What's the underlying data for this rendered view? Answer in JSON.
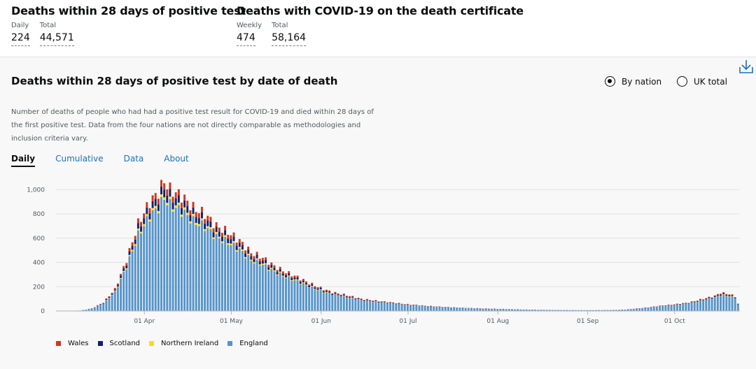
{
  "metrics": {
    "deaths28": {
      "title": "Deaths within 28 days of positive test",
      "daily_label": "Daily",
      "daily_value": "224",
      "total_label": "Total",
      "total_value": "44,571"
    },
    "certificate": {
      "title": "Deaths with COVID-19 on the death certificate",
      "weekly_label": "Weekly",
      "weekly_value": "474",
      "total_label": "Total",
      "total_value": "58,164"
    }
  },
  "panel": {
    "title": "Deaths within 28 days of positive test by date of death",
    "description": "Number of deaths of people who had had a positive test result for COVID-19 and died within 28 days of the first positive test. Data from the four nations are not directly comparable as methodologies and inclusion criteria vary.",
    "radio_options": [
      {
        "label": "By nation",
        "selected": true
      },
      {
        "label": "UK total",
        "selected": false
      }
    ],
    "tabs": [
      {
        "label": "Daily",
        "active": true
      },
      {
        "label": "Cumulative",
        "active": false
      },
      {
        "label": "Data",
        "active": false
      },
      {
        "label": "About",
        "active": false
      }
    ],
    "download_icon": "download-icon"
  },
  "chart_data": {
    "type": "bar",
    "stacked": true,
    "x_type": "date",
    "x_start": "2020-03-02",
    "x_end": "2020-10-23",
    "x_ticks": [
      {
        "date": "2020-04-01",
        "label": "01 Apr"
      },
      {
        "date": "2020-05-01",
        "label": "01 May"
      },
      {
        "date": "2020-06-01",
        "label": "01 Jun"
      },
      {
        "date": "2020-07-01",
        "label": "01 Jul"
      },
      {
        "date": "2020-08-01",
        "label": "01 Aug"
      },
      {
        "date": "2020-09-01",
        "label": "01 Sep"
      },
      {
        "date": "2020-10-01",
        "label": "01 Oct"
      }
    ],
    "y_ticks": [
      {
        "value": 0,
        "label": "0"
      },
      {
        "value": 200,
        "label": "200"
      },
      {
        "value": 400,
        "label": "400"
      },
      {
        "value": 600,
        "label": "600"
      },
      {
        "value": 800,
        "label": "800"
      },
      {
        "value": 1000,
        "label": "1,000"
      }
    ],
    "ylim": [
      0,
      1100
    ],
    "grid": true,
    "legend_position": "bottom-left",
    "series": [
      {
        "name": "Wales",
        "color": "#d4351c",
        "fraction": 0.05
      },
      {
        "name": "Scotland",
        "color": "#12216e",
        "fraction": 0.06
      },
      {
        "name": "Northern Ireland",
        "color": "#ffdd00",
        "fraction": 0.02
      },
      {
        "name": "England",
        "color": "#5694ca",
        "fraction": 0.87
      }
    ],
    "total_keypoints": [
      [
        "2020-03-02",
        0
      ],
      [
        "2020-03-06",
        2
      ],
      [
        "2020-03-10",
        5
      ],
      [
        "2020-03-14",
        22
      ],
      [
        "2020-03-18",
        70
      ],
      [
        "2020-03-22",
        180
      ],
      [
        "2020-03-26",
        420
      ],
      [
        "2020-03-30",
        720
      ],
      [
        "2020-04-03",
        900
      ],
      [
        "2020-04-06",
        980
      ],
      [
        "2020-04-08",
        1070
      ],
      [
        "2020-04-10",
        1000
      ],
      [
        "2020-04-14",
        950
      ],
      [
        "2020-04-18",
        850
      ],
      [
        "2020-04-22",
        800
      ],
      [
        "2020-04-26",
        700
      ],
      [
        "2020-04-30",
        650
      ],
      [
        "2020-05-04",
        580
      ],
      [
        "2020-05-08",
        480
      ],
      [
        "2020-05-12",
        440
      ],
      [
        "2020-05-16",
        370
      ],
      [
        "2020-05-20",
        320
      ],
      [
        "2020-05-24",
        280
      ],
      [
        "2020-05-28",
        230
      ],
      [
        "2020-06-01",
        190
      ],
      [
        "2020-06-05",
        155
      ],
      [
        "2020-06-10",
        130
      ],
      [
        "2020-06-15",
        100
      ],
      [
        "2020-06-20",
        85
      ],
      [
        "2020-06-25",
        72
      ],
      [
        "2020-07-01",
        55
      ],
      [
        "2020-07-08",
        42
      ],
      [
        "2020-07-15",
        32
      ],
      [
        "2020-07-22",
        25
      ],
      [
        "2020-08-01",
        18
      ],
      [
        "2020-08-10",
        14
      ],
      [
        "2020-08-20",
        10
      ],
      [
        "2020-09-01",
        8
      ],
      [
        "2020-09-10",
        10
      ],
      [
        "2020-09-15",
        15
      ],
      [
        "2020-09-20",
        25
      ],
      [
        "2020-09-25",
        40
      ],
      [
        "2020-10-01",
        55
      ],
      [
        "2020-10-06",
        70
      ],
      [
        "2020-10-11",
        100
      ],
      [
        "2020-10-15",
        125
      ],
      [
        "2020-10-17",
        150
      ],
      [
        "2020-10-20",
        140
      ],
      [
        "2020-10-22",
        120
      ],
      [
        "2020-10-23",
        60
      ]
    ]
  }
}
